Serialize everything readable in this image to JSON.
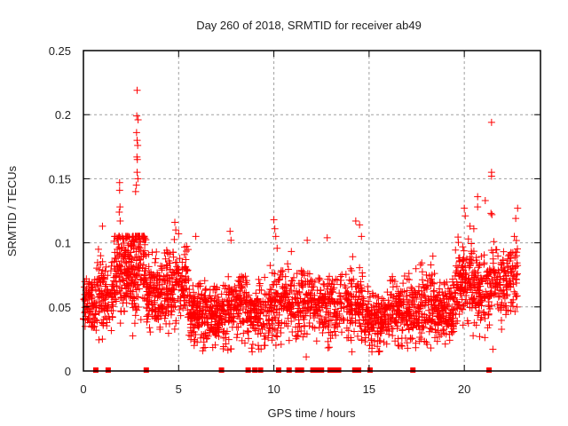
{
  "chart_data": {
    "type": "scatter",
    "title": "Day 260 of 2018, SRMTID for receiver ab49",
    "xlabel": "GPS time / hours",
    "ylabel": "SRMTID / TECUs",
    "xlim": [
      0,
      24
    ],
    "ylim": [
      0,
      0.25
    ],
    "xticks": [
      0,
      5,
      10,
      15,
      20
    ],
    "xtick_labels": [
      "0",
      "5",
      "10",
      "15",
      "20"
    ],
    "yticks": [
      0,
      0.05,
      0.1,
      0.15,
      0.2,
      0.25
    ],
    "ytick_labels": [
      "0",
      "0.05",
      "0.1",
      "0.15",
      "0.2",
      "0.25"
    ],
    "grid": true,
    "legend": "none",
    "marker": "plus",
    "color": "#ff0000",
    "series": [
      {
        "name": "SRMTID",
        "note": "dense noisy cloud of ~3000 points; summarized as segments (time range in hours, typical center value, spread in TECU, approx point count) plus individually legible outliers and zero-value samples",
        "segments": [
          {
            "t": [
              0.0,
              0.7
            ],
            "center": 0.052,
            "spread": 0.014,
            "count": 90
          },
          {
            "t": [
              0.7,
              1.6
            ],
            "center": 0.058,
            "spread": 0.018,
            "count": 110
          },
          {
            "t": [
              1.6,
              2.5
            ],
            "center": 0.078,
            "spread": 0.022,
            "count": 150
          },
          {
            "t": [
              2.5,
              3.3
            ],
            "center": 0.085,
            "spread": 0.026,
            "count": 140
          },
          {
            "t": [
              3.3,
              4.2
            ],
            "center": 0.058,
            "spread": 0.015,
            "count": 130
          },
          {
            "t": [
              4.2,
              5.5
            ],
            "center": 0.066,
            "spread": 0.018,
            "count": 170
          },
          {
            "t": [
              5.5,
              6.5
            ],
            "center": 0.045,
            "spread": 0.015,
            "count": 140
          },
          {
            "t": [
              6.5,
              7.5
            ],
            "center": 0.043,
            "spread": 0.014,
            "count": 130
          },
          {
            "t": [
              7.5,
              8.6
            ],
            "center": 0.052,
            "spread": 0.016,
            "count": 130
          },
          {
            "t": [
              8.6,
              9.8
            ],
            "center": 0.046,
            "spread": 0.015,
            "count": 130
          },
          {
            "t": [
              9.8,
              11.0
            ],
            "center": 0.055,
            "spread": 0.018,
            "count": 140
          },
          {
            "t": [
              11.0,
              12.3
            ],
            "center": 0.052,
            "spread": 0.017,
            "count": 130
          },
          {
            "t": [
              12.3,
              13.5
            ],
            "center": 0.05,
            "spread": 0.016,
            "count": 130
          },
          {
            "t": [
              13.5,
              14.7
            ],
            "center": 0.052,
            "spread": 0.017,
            "count": 130
          },
          {
            "t": [
              14.7,
              15.9
            ],
            "center": 0.04,
            "spread": 0.013,
            "count": 150
          },
          {
            "t": [
              15.9,
              17.2
            ],
            "center": 0.046,
            "spread": 0.015,
            "count": 150
          },
          {
            "t": [
              17.2,
              18.5
            ],
            "center": 0.05,
            "spread": 0.016,
            "count": 150
          },
          {
            "t": [
              18.5,
              19.5
            ],
            "center": 0.045,
            "spread": 0.015,
            "count": 130
          },
          {
            "t": [
              19.5,
              20.4
            ],
            "center": 0.068,
            "spread": 0.018,
            "count": 120
          },
          {
            "t": [
              20.4,
              21.5
            ],
            "center": 0.062,
            "spread": 0.018,
            "count": 130
          },
          {
            "t": [
              21.5,
              22.8
            ],
            "center": 0.07,
            "spread": 0.018,
            "count": 140
          }
        ],
        "outliers": [
          [
            2.82,
            0.219
          ],
          [
            2.8,
            0.199
          ],
          [
            2.87,
            0.196
          ],
          [
            2.79,
            0.186
          ],
          [
            2.82,
            0.18
          ],
          [
            2.85,
            0.176
          ],
          [
            2.81,
            0.167
          ],
          [
            2.83,
            0.165
          ],
          [
            2.82,
            0.155
          ],
          [
            2.86,
            0.15
          ],
          [
            2.78,
            0.145
          ],
          [
            2.74,
            0.14
          ],
          [
            1.9,
            0.147
          ],
          [
            1.9,
            0.141
          ],
          [
            1.92,
            0.128
          ],
          [
            1.88,
            0.124
          ],
          [
            1.93,
            0.117
          ],
          [
            1.0,
            0.113
          ],
          [
            4.8,
            0.116
          ],
          [
            4.85,
            0.11
          ],
          [
            5.0,
            0.107
          ],
          [
            5.9,
            0.105
          ],
          [
            7.7,
            0.109
          ],
          [
            7.75,
            0.102
          ],
          [
            10.0,
            0.118
          ],
          [
            10.05,
            0.111
          ],
          [
            10.1,
            0.105
          ],
          [
            11.75,
            0.102
          ],
          [
            12.8,
            0.104
          ],
          [
            14.3,
            0.117
          ],
          [
            14.5,
            0.114
          ],
          [
            14.6,
            0.105
          ],
          [
            20.0,
            0.127
          ],
          [
            20.05,
            0.121
          ],
          [
            20.3,
            0.113
          ],
          [
            20.5,
            0.111
          ],
          [
            20.7,
            0.136
          ],
          [
            20.7,
            0.128
          ],
          [
            21.1,
            0.133
          ],
          [
            21.43,
            0.194
          ],
          [
            21.43,
            0.155
          ],
          [
            21.43,
            0.152
          ],
          [
            21.4,
            0.123
          ],
          [
            21.45,
            0.122
          ],
          [
            22.8,
            0.127
          ],
          [
            22.7,
            0.119
          ],
          [
            11.7,
            0.011
          ],
          [
            9.5,
            0.02
          ],
          [
            6.3,
            0.018
          ],
          [
            15.5,
            0.015
          ],
          [
            17.0,
            0.022
          ],
          [
            19.0,
            0.021
          ],
          [
            21.5,
            0.017
          ]
        ],
        "zeros": [
          0.65,
          1.3,
          3.3,
          7.25,
          8.65,
          9.0,
          9.3,
          10.25,
          10.8,
          11.25,
          11.45,
          12.05,
          12.3,
          12.5,
          12.95,
          13.15,
          13.4,
          14.25,
          14.45,
          15.05,
          17.3,
          21.3
        ]
      }
    ]
  }
}
